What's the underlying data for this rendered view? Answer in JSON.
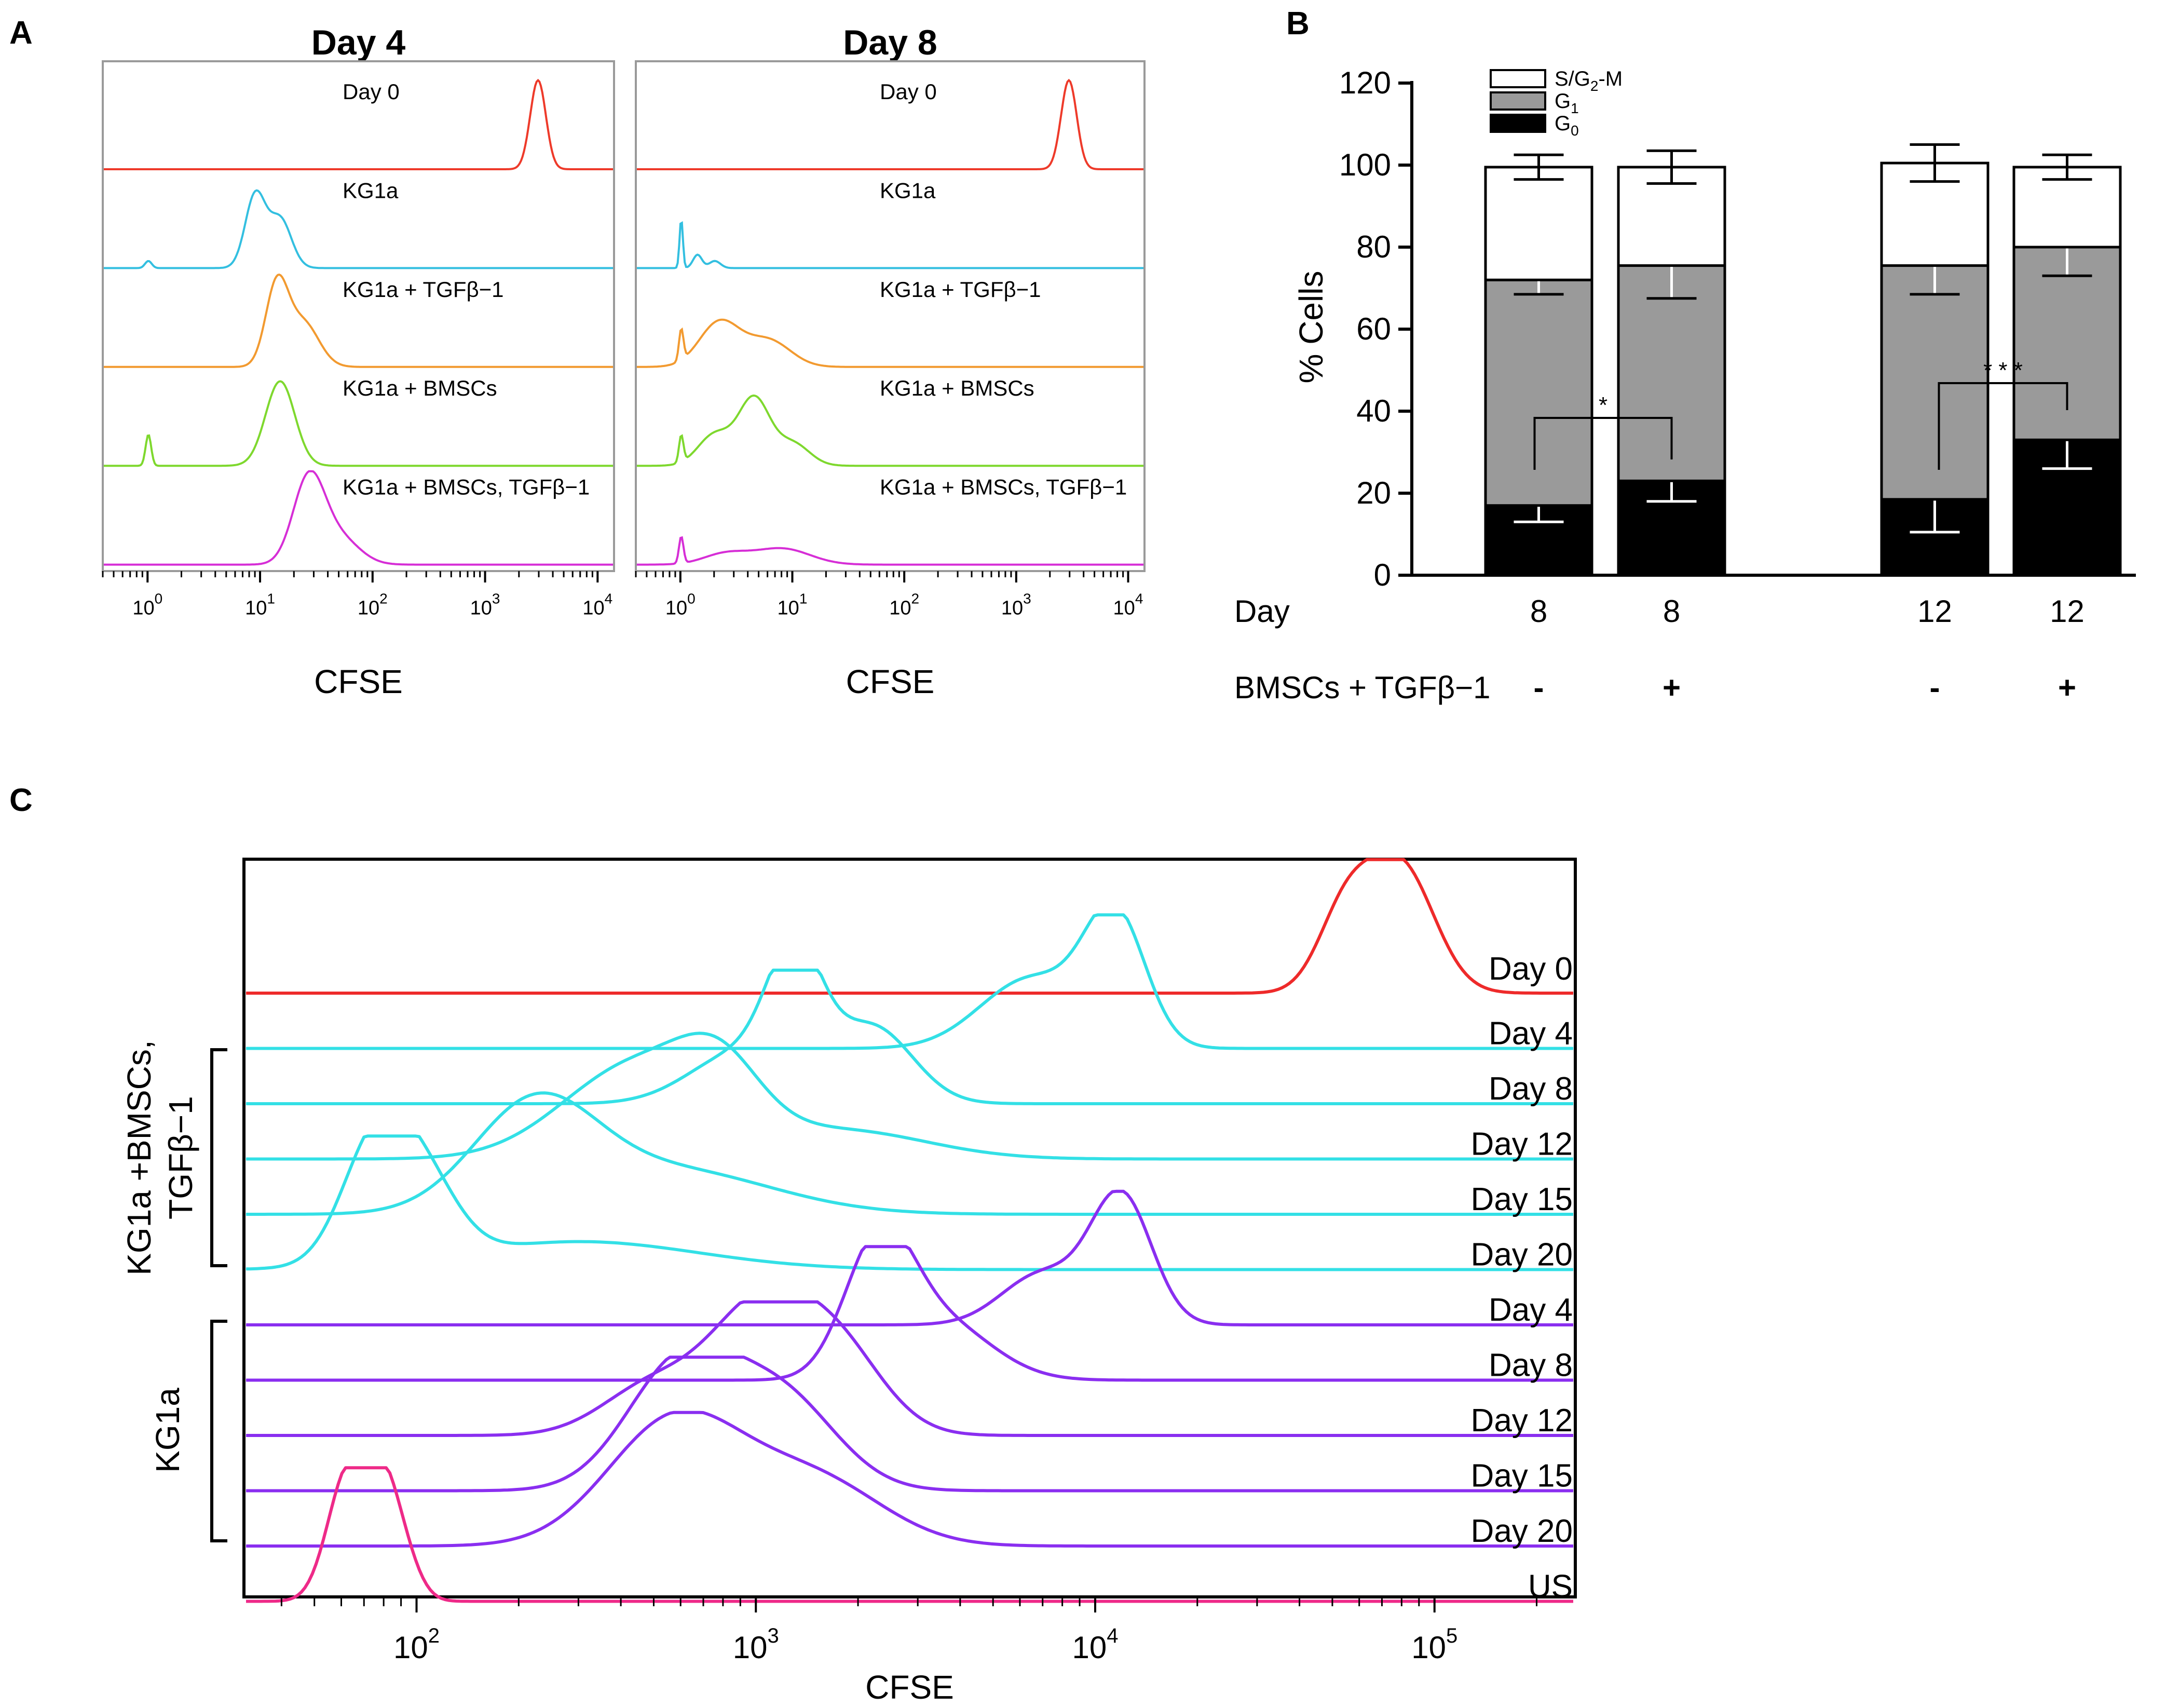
{
  "panels": {
    "a": "A",
    "b": "B",
    "c": "C"
  },
  "chart_data": [
    {
      "id": "panel-a-day4",
      "type": "histogram",
      "title": "Day 4",
      "xlabel": "CFSE",
      "xscale": "log",
      "xlim": [
        0.4,
        14000
      ],
      "xtick_labels": [
        "10^0",
        "10^1",
        "10^2",
        "10^3",
        "10^4"
      ],
      "tracks": [
        {
          "label": "Day 0",
          "color": "#ee3a2a",
          "peaks": [
            {
              "center": 3000,
              "height": 1.0,
              "width": 0.07
            }
          ]
        },
        {
          "label": "KG1a",
          "color": "#33bfe0",
          "peaks": [
            {
              "center": 1.0,
              "height": 0.08,
              "width": 0.03
            },
            {
              "center": 9,
              "height": 0.82,
              "width": 0.09
            },
            {
              "center": 15,
              "height": 0.55,
              "width": 0.1
            }
          ]
        },
        {
          "label": "KG1a + TGFβ−1",
          "color": "#f29a30",
          "peaks": [
            {
              "center": 14,
              "height": 0.9,
              "width": 0.1
            },
            {
              "center": 24,
              "height": 0.5,
              "width": 0.14
            }
          ]
        },
        {
          "label": "KG1a + BMSCs",
          "color": "#7ed82e",
          "peaks": [
            {
              "center": 1.0,
              "height": 0.35,
              "width": 0.025
            },
            {
              "center": 15,
              "height": 0.95,
              "width": 0.13
            }
          ]
        },
        {
          "label": "KG1a + BMSCs, TGFβ−1",
          "color": "#d62ed6",
          "peaks": [
            {
              "center": 27,
              "height": 0.95,
              "width": 0.14
            },
            {
              "center": 50,
              "height": 0.3,
              "width": 0.18
            }
          ]
        }
      ]
    },
    {
      "id": "panel-a-day8",
      "type": "histogram",
      "title": "Day 8",
      "xlabel": "CFSE",
      "xscale": "log",
      "xlim": [
        0.4,
        14000
      ],
      "xtick_labels": [
        "10^0",
        "10^1",
        "10^2",
        "10^3",
        "10^4"
      ],
      "tracks": [
        {
          "label": "Day 0",
          "color": "#ee3a2a",
          "peaks": [
            {
              "center": 3000,
              "height": 1.0,
              "width": 0.07
            }
          ]
        },
        {
          "label": "KG1a",
          "color": "#33bfe0",
          "peaks": [
            {
              "center": 1.0,
              "height": 0.55,
              "width": 0.015
            },
            {
              "center": 1.4,
              "height": 0.15,
              "width": 0.04
            },
            {
              "center": 2.0,
              "height": 0.08,
              "width": 0.05
            }
          ]
        },
        {
          "label": "KG1a + TGFβ−1",
          "color": "#f29a30",
          "peaks": [
            {
              "center": 1.0,
              "height": 0.35,
              "width": 0.02
            },
            {
              "center": 2.2,
              "height": 0.5,
              "width": 0.18
            },
            {
              "center": 6,
              "height": 0.3,
              "width": 0.2
            }
          ]
        },
        {
          "label": "KG1a + BMSCs",
          "color": "#7ed82e",
          "peaks": [
            {
              "center": 1.0,
              "height": 0.3,
              "width": 0.02
            },
            {
              "center": 2.0,
              "height": 0.35,
              "width": 0.15
            },
            {
              "center": 4.5,
              "height": 0.75,
              "width": 0.14
            },
            {
              "center": 10,
              "height": 0.25,
              "width": 0.15
            }
          ]
        },
        {
          "label": "KG1a + BMSCs, TGFβ−1",
          "color": "#d62ed6",
          "peaks": [
            {
              "center": 1.0,
              "height": 0.3,
              "width": 0.02
            },
            {
              "center": 2.5,
              "height": 0.12,
              "width": 0.2
            },
            {
              "center": 8,
              "height": 0.18,
              "width": 0.25
            }
          ]
        }
      ]
    },
    {
      "id": "panel-b",
      "type": "bar",
      "stacked": true,
      "ylabel": "% Cells",
      "ylim": [
        0,
        120
      ],
      "yticks": [
        0,
        20,
        40,
        60,
        80,
        100,
        120
      ],
      "categories": [
        "8",
        "8",
        "12",
        "12"
      ],
      "row_labels": {
        "day": "Day",
        "treatment": "BMSCs + TGFβ−1"
      },
      "treatment": [
        "-",
        "+",
        "-",
        "+"
      ],
      "legend": [
        {
          "name": "S/G2-M",
          "color": "#ffffff"
        },
        {
          "name": "G1",
          "color": "#9a9a9a"
        },
        {
          "name": "G0",
          "color": "#000000"
        }
      ],
      "series": [
        {
          "name": "G0",
          "values": [
            17,
            23,
            18.5,
            33
          ],
          "errors": [
            4,
            5,
            8,
            7
          ]
        },
        {
          "name": "G1",
          "values": [
            55,
            52.5,
            57,
            47
          ],
          "errors": [
            3.5,
            8,
            7,
            7
          ]
        },
        {
          "name": "S/G2-M",
          "values": [
            27.5,
            24,
            25,
            19.5
          ],
          "errors": [
            3,
            4,
            4.5,
            3
          ]
        }
      ],
      "significance": [
        {
          "label": "*",
          "groups": [
            0,
            1
          ]
        },
        {
          "label": "* * *",
          "groups": [
            2,
            3
          ]
        }
      ]
    },
    {
      "id": "panel-c",
      "type": "histogram",
      "xlabel": "CFSE",
      "xscale": "log",
      "xlim": [
        31,
        260000
      ],
      "xtick_labels": [
        "10^2",
        "10^3",
        "10^4",
        "10^5"
      ],
      "group_labels": {
        "treated": "KG1a +BMSCs, TGFβ−1",
        "control": "KG1a"
      },
      "tracks": [
        {
          "label": "Day 0",
          "color": "#ee2a2a",
          "peaks": [
            {
              "center": 80000,
              "height": 1.0,
              "width": 0.1
            },
            {
              "center": 55000,
              "height": 0.6,
              "width": 0.08
            }
          ]
        },
        {
          "label": "Day 4",
          "color": "#33e0e6",
          "peaks": [
            {
              "center": 11500,
              "height": 1.0,
              "width": 0.09
            },
            {
              "center": 6500,
              "height": 0.55,
              "width": 0.15
            }
          ]
        },
        {
          "label": "Day 8",
          "color": "#33e0e6",
          "peaks": [
            {
              "center": 1300,
              "height": 1.0,
              "width": 0.08
            },
            {
              "center": 2200,
              "height": 0.6,
              "width": 0.12
            },
            {
              "center": 900,
              "height": 0.4,
              "width": 0.15
            }
          ]
        },
        {
          "label": "Day 12",
          "color": "#33e0e6",
          "peaks": [
            {
              "center": 450,
              "height": 0.75,
              "width": 0.22
            },
            {
              "center": 780,
              "height": 0.45,
              "width": 0.12
            },
            {
              "center": 1800,
              "height": 0.22,
              "width": 0.25
            }
          ]
        },
        {
          "label": "Day 15",
          "color": "#33e0e6",
          "peaks": [
            {
              "center": 220,
              "height": 0.8,
              "width": 0.18
            },
            {
              "center": 550,
              "height": 0.35,
              "width": 0.3
            }
          ]
        },
        {
          "label": "Day 20",
          "color": "#33e0e6",
          "peaks": [
            {
              "center": 75,
              "height": 0.95,
              "width": 0.1
            },
            {
              "center": 105,
              "height": 0.55,
              "width": 0.1
            },
            {
              "center": 300,
              "height": 0.22,
              "width": 0.35
            }
          ]
        },
        {
          "label": "Day 4",
          "color": "#8a2ef0",
          "peaks": [
            {
              "center": 12000,
              "height": 1.0,
              "width": 0.09
            },
            {
              "center": 7000,
              "height": 0.4,
              "width": 0.12
            }
          ]
        },
        {
          "label": "Day 8",
          "color": "#8a2ef0",
          "peaks": [
            {
              "center": 2300,
              "height": 1.0,
              "width": 0.1
            },
            {
              "center": 3500,
              "height": 0.45,
              "width": 0.15
            }
          ]
        },
        {
          "label": "Day 12",
          "color": "#8a2ef0",
          "peaks": [
            {
              "center": 1000,
              "height": 0.9,
              "width": 0.14
            },
            {
              "center": 1700,
              "height": 0.7,
              "width": 0.14
            },
            {
              "center": 500,
              "height": 0.4,
              "width": 0.15
            }
          ]
        },
        {
          "label": "Day 15",
          "color": "#8a2ef0",
          "peaks": [
            {
              "center": 600,
              "height": 1.0,
              "width": 0.16
            },
            {
              "center": 1200,
              "height": 0.7,
              "width": 0.16
            }
          ]
        },
        {
          "label": "Day 20",
          "color": "#8a2ef0",
          "peaks": [
            {
              "center": 580,
              "height": 1.0,
              "width": 0.2
            },
            {
              "center": 1500,
              "height": 0.5,
              "width": 0.2
            }
          ]
        },
        {
          "label": "US",
          "color": "#ee2a88",
          "peaks": [
            {
              "center": 62,
              "height": 1.0,
              "width": 0.06
            },
            {
              "center": 78,
              "height": 0.75,
              "width": 0.05
            },
            {
              "center": 90,
              "height": 0.3,
              "width": 0.05
            }
          ]
        }
      ]
    }
  ]
}
